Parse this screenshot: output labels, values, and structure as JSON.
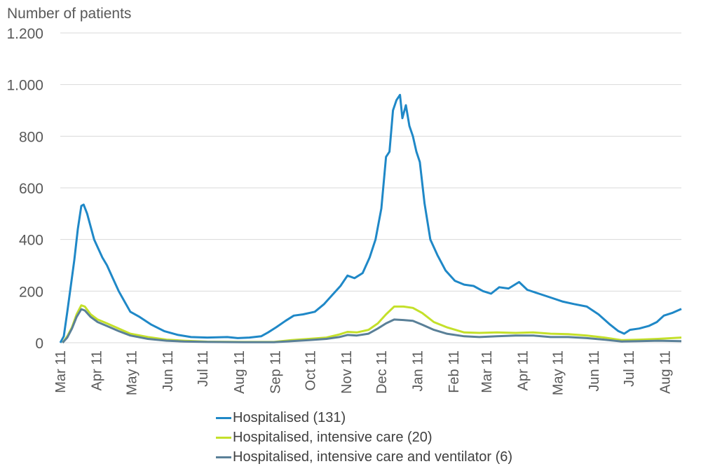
{
  "chart_data": {
    "type": "line",
    "ylabel": "Number of patients",
    "ylim": [
      0,
      1200
    ],
    "yticks": [
      0,
      200,
      400,
      600,
      800,
      1000,
      1200
    ],
    "ytick_labels": [
      "0",
      "200",
      "400",
      "600",
      "800",
      "1.000",
      "1.200"
    ],
    "x_range": [
      "2020-03-11",
      "2021-08-25"
    ],
    "xtick_labels": [
      "Mar 11",
      "Apr 11",
      "May 11",
      "Jun 11",
      "Jul 11",
      "Aug 11",
      "Sep 11",
      "Oct 11",
      "Nov 11",
      "Dec 11",
      "Jan 11",
      "Feb 11",
      "Mar 11",
      "Apr 11",
      "May 11",
      "Jun 11",
      "Jul 11",
      "Aug 11"
    ],
    "xtick_dates": [
      "2020-03-11",
      "2020-04-11",
      "2020-05-11",
      "2020-06-11",
      "2020-07-11",
      "2020-08-11",
      "2020-09-11",
      "2020-10-11",
      "2020-11-11",
      "2020-12-11",
      "2021-01-11",
      "2021-02-11",
      "2021-03-11",
      "2021-04-11",
      "2021-05-11",
      "2021-06-11",
      "2021-07-11",
      "2021-08-11"
    ],
    "grid": true,
    "legend_position": "bottom",
    "series": [
      {
        "name": "Hospitalised (131)",
        "color": "#1f88c7",
        "points": [
          [
            "2020-03-11",
            0
          ],
          [
            "2020-03-14",
            25
          ],
          [
            "2020-03-17",
            120
          ],
          [
            "2020-03-20",
            220
          ],
          [
            "2020-03-23",
            320
          ],
          [
            "2020-03-26",
            440
          ],
          [
            "2020-03-29",
            530
          ],
          [
            "2020-03-31",
            535
          ],
          [
            "2020-04-03",
            500
          ],
          [
            "2020-04-06",
            450
          ],
          [
            "2020-04-09",
            400
          ],
          [
            "2020-04-12",
            370
          ],
          [
            "2020-04-16",
            330
          ],
          [
            "2020-04-20",
            300
          ],
          [
            "2020-04-25",
            250
          ],
          [
            "2020-04-30",
            200
          ],
          [
            "2020-05-05",
            160
          ],
          [
            "2020-05-10",
            120
          ],
          [
            "2020-05-18",
            100
          ],
          [
            "2020-05-28",
            70
          ],
          [
            "2020-06-08",
            45
          ],
          [
            "2020-06-20",
            30
          ],
          [
            "2020-07-01",
            22
          ],
          [
            "2020-07-15",
            20
          ],
          [
            "2020-08-01",
            22
          ],
          [
            "2020-08-10",
            18
          ],
          [
            "2020-08-20",
            20
          ],
          [
            "2020-08-30",
            25
          ],
          [
            "2020-09-05",
            40
          ],
          [
            "2020-09-12",
            60
          ],
          [
            "2020-09-20",
            85
          ],
          [
            "2020-09-27",
            105
          ],
          [
            "2020-10-05",
            110
          ],
          [
            "2020-10-15",
            120
          ],
          [
            "2020-10-23",
            150
          ],
          [
            "2020-10-30",
            185
          ],
          [
            "2020-11-06",
            220
          ],
          [
            "2020-11-12",
            260
          ],
          [
            "2020-11-18",
            250
          ],
          [
            "2020-11-25",
            270
          ],
          [
            "2020-12-01",
            330
          ],
          [
            "2020-12-06",
            400
          ],
          [
            "2020-12-11",
            520
          ],
          [
            "2020-12-15",
            720
          ],
          [
            "2020-12-18",
            740
          ],
          [
            "2020-12-21",
            900
          ],
          [
            "2020-12-24",
            940
          ],
          [
            "2020-12-27",
            960
          ],
          [
            "2020-12-29",
            870
          ],
          [
            "2021-01-01",
            920
          ],
          [
            "2021-01-04",
            840
          ],
          [
            "2021-01-07",
            800
          ],
          [
            "2021-01-10",
            740
          ],
          [
            "2021-01-13",
            700
          ],
          [
            "2021-01-17",
            540
          ],
          [
            "2021-01-22",
            400
          ],
          [
            "2021-01-28",
            340
          ],
          [
            "2021-02-04",
            280
          ],
          [
            "2021-02-12",
            240
          ],
          [
            "2021-02-20",
            225
          ],
          [
            "2021-02-28",
            220
          ],
          [
            "2021-03-08",
            200
          ],
          [
            "2021-03-15",
            190
          ],
          [
            "2021-03-22",
            215
          ],
          [
            "2021-03-30",
            210
          ],
          [
            "2021-04-08",
            235
          ],
          [
            "2021-04-15",
            205
          ],
          [
            "2021-04-25",
            190
          ],
          [
            "2021-05-05",
            175
          ],
          [
            "2021-05-15",
            160
          ],
          [
            "2021-05-25",
            150
          ],
          [
            "2021-06-05",
            140
          ],
          [
            "2021-06-15",
            110
          ],
          [
            "2021-06-25",
            70
          ],
          [
            "2021-07-02",
            45
          ],
          [
            "2021-07-07",
            35
          ],
          [
            "2021-07-12",
            50
          ],
          [
            "2021-07-20",
            55
          ],
          [
            "2021-07-28",
            65
          ],
          [
            "2021-08-04",
            80
          ],
          [
            "2021-08-10",
            105
          ],
          [
            "2021-08-17",
            115
          ],
          [
            "2021-08-25",
            131
          ]
        ]
      },
      {
        "name": "Hospitalised, intensive care (20)",
        "color": "#c4e02a",
        "points": [
          [
            "2020-03-13",
            0
          ],
          [
            "2020-03-17",
            25
          ],
          [
            "2020-03-21",
            60
          ],
          [
            "2020-03-25",
            110
          ],
          [
            "2020-03-29",
            145
          ],
          [
            "2020-04-01",
            140
          ],
          [
            "2020-04-06",
            110
          ],
          [
            "2020-04-12",
            90
          ],
          [
            "2020-04-20",
            75
          ],
          [
            "2020-04-30",
            55
          ],
          [
            "2020-05-10",
            35
          ],
          [
            "2020-05-25",
            22
          ],
          [
            "2020-06-10",
            12
          ],
          [
            "2020-06-25",
            8
          ],
          [
            "2020-07-15",
            4
          ],
          [
            "2020-08-15",
            3
          ],
          [
            "2020-09-10",
            3
          ],
          [
            "2020-09-25",
            10
          ],
          [
            "2020-10-10",
            15
          ],
          [
            "2020-10-25",
            20
          ],
          [
            "2020-11-05",
            32
          ],
          [
            "2020-11-12",
            42
          ],
          [
            "2020-11-20",
            40
          ],
          [
            "2020-11-30",
            50
          ],
          [
            "2020-12-08",
            75
          ],
          [
            "2020-12-15",
            110
          ],
          [
            "2020-12-22",
            140
          ],
          [
            "2020-12-30",
            140
          ],
          [
            "2021-01-07",
            135
          ],
          [
            "2021-01-15",
            115
          ],
          [
            "2021-01-25",
            80
          ],
          [
            "2021-02-05",
            60
          ],
          [
            "2021-02-20",
            40
          ],
          [
            "2021-03-05",
            38
          ],
          [
            "2021-03-20",
            40
          ],
          [
            "2021-04-05",
            38
          ],
          [
            "2021-04-20",
            40
          ],
          [
            "2021-05-05",
            35
          ],
          [
            "2021-05-20",
            33
          ],
          [
            "2021-06-05",
            28
          ],
          [
            "2021-06-20",
            20
          ],
          [
            "2021-07-05",
            10
          ],
          [
            "2021-07-20",
            12
          ],
          [
            "2021-08-05",
            15
          ],
          [
            "2021-08-25",
            20
          ]
        ]
      },
      {
        "name": "Hospitalised, intensive care and ventilator (6)",
        "color": "#5a8098",
        "points": [
          [
            "2020-03-13",
            0
          ],
          [
            "2020-03-17",
            20
          ],
          [
            "2020-03-21",
            55
          ],
          [
            "2020-03-25",
            100
          ],
          [
            "2020-03-29",
            130
          ],
          [
            "2020-04-01",
            125
          ],
          [
            "2020-04-06",
            100
          ],
          [
            "2020-04-12",
            80
          ],
          [
            "2020-04-20",
            65
          ],
          [
            "2020-04-30",
            45
          ],
          [
            "2020-05-10",
            28
          ],
          [
            "2020-05-25",
            15
          ],
          [
            "2020-06-10",
            8
          ],
          [
            "2020-06-25",
            5
          ],
          [
            "2020-07-15",
            3
          ],
          [
            "2020-08-15",
            2
          ],
          [
            "2020-09-10",
            2
          ],
          [
            "2020-09-25",
            6
          ],
          [
            "2020-10-10",
            10
          ],
          [
            "2020-10-25",
            15
          ],
          [
            "2020-11-05",
            22
          ],
          [
            "2020-11-12",
            30
          ],
          [
            "2020-11-20",
            28
          ],
          [
            "2020-11-30",
            35
          ],
          [
            "2020-12-08",
            55
          ],
          [
            "2020-12-15",
            75
          ],
          [
            "2020-12-22",
            90
          ],
          [
            "2020-12-30",
            88
          ],
          [
            "2021-01-07",
            85
          ],
          [
            "2021-01-15",
            70
          ],
          [
            "2021-01-25",
            50
          ],
          [
            "2021-02-05",
            35
          ],
          [
            "2021-02-20",
            25
          ],
          [
            "2021-03-05",
            22
          ],
          [
            "2021-03-20",
            25
          ],
          [
            "2021-04-05",
            28
          ],
          [
            "2021-04-20",
            28
          ],
          [
            "2021-05-05",
            22
          ],
          [
            "2021-05-20",
            22
          ],
          [
            "2021-06-05",
            18
          ],
          [
            "2021-06-20",
            12
          ],
          [
            "2021-07-05",
            5
          ],
          [
            "2021-07-20",
            6
          ],
          [
            "2021-08-05",
            8
          ],
          [
            "2021-08-25",
            6
          ]
        ]
      }
    ]
  }
}
